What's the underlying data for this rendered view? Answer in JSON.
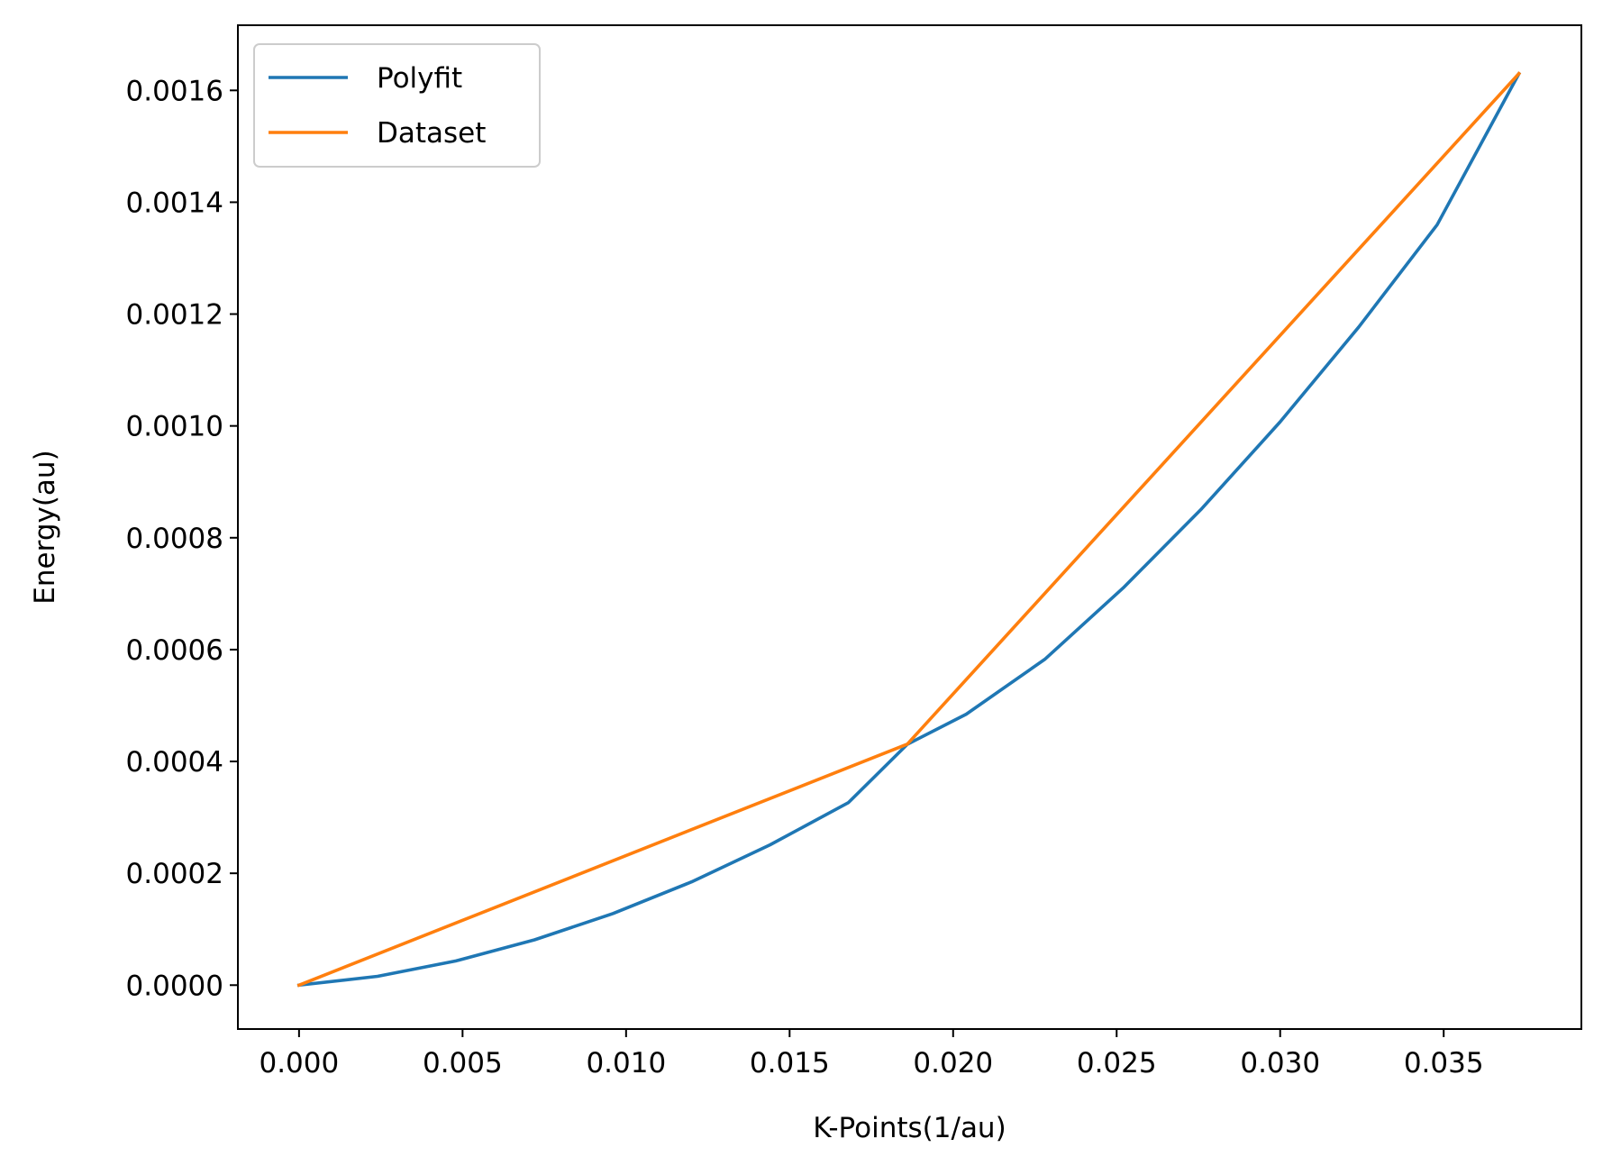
{
  "chart_data": {
    "type": "line",
    "title": "",
    "xlabel": "K-Points(1/au)",
    "ylabel": "Energy(au)",
    "xlim": [
      -0.00187,
      0.03921
    ],
    "ylim": [
      -7.85e-05,
      0.0017165
    ],
    "grid": false,
    "legend_position": "top-left",
    "x_ticks": [
      {
        "value": 0.0,
        "label": "0.000"
      },
      {
        "value": 0.005,
        "label": "0.005"
      },
      {
        "value": 0.01,
        "label": "0.010"
      },
      {
        "value": 0.015,
        "label": "0.015"
      },
      {
        "value": 0.02,
        "label": "0.020"
      },
      {
        "value": 0.025,
        "label": "0.025"
      },
      {
        "value": 0.03,
        "label": "0.030"
      },
      {
        "value": 0.035,
        "label": "0.035"
      }
    ],
    "y_ticks": [
      {
        "value": 0.0,
        "label": "0.0000"
      },
      {
        "value": 0.0002,
        "label": "0.0002"
      },
      {
        "value": 0.0004,
        "label": "0.0004"
      },
      {
        "value": 0.0006,
        "label": "0.0006"
      },
      {
        "value": 0.0008,
        "label": "0.0008"
      },
      {
        "value": 0.001,
        "label": "0.0010"
      },
      {
        "value": 0.0012,
        "label": "0.0012"
      },
      {
        "value": 0.0014,
        "label": "0.0014"
      },
      {
        "value": 0.0016,
        "label": "0.0016"
      }
    ],
    "series": [
      {
        "name": "Polyfit",
        "color": "#1f77b4",
        "x": [
          0.0,
          0.0024,
          0.0048,
          0.0072,
          0.0096,
          0.012,
          0.0144,
          0.0168,
          0.0186,
          0.0204,
          0.0228,
          0.0252,
          0.0276,
          0.03,
          0.0324,
          0.0348,
          0.0373
        ],
        "y": [
          0.0,
          1.58e-05,
          4.34e-05,
          8.1e-05,
          0.000128,
          0.0001846,
          0.0002508,
          0.0003265,
          0.0004307,
          0.0004845,
          0.0005825,
          0.0007103,
          0.0008519,
          0.0010073,
          0.0011766,
          0.0013597,
          0.0016297
        ]
      },
      {
        "name": "Dataset",
        "color": "#ff7f0e",
        "x": [
          0.0,
          0.0186,
          0.0373
        ],
        "y": [
          0.0,
          0.000431,
          0.00163
        ]
      }
    ]
  }
}
